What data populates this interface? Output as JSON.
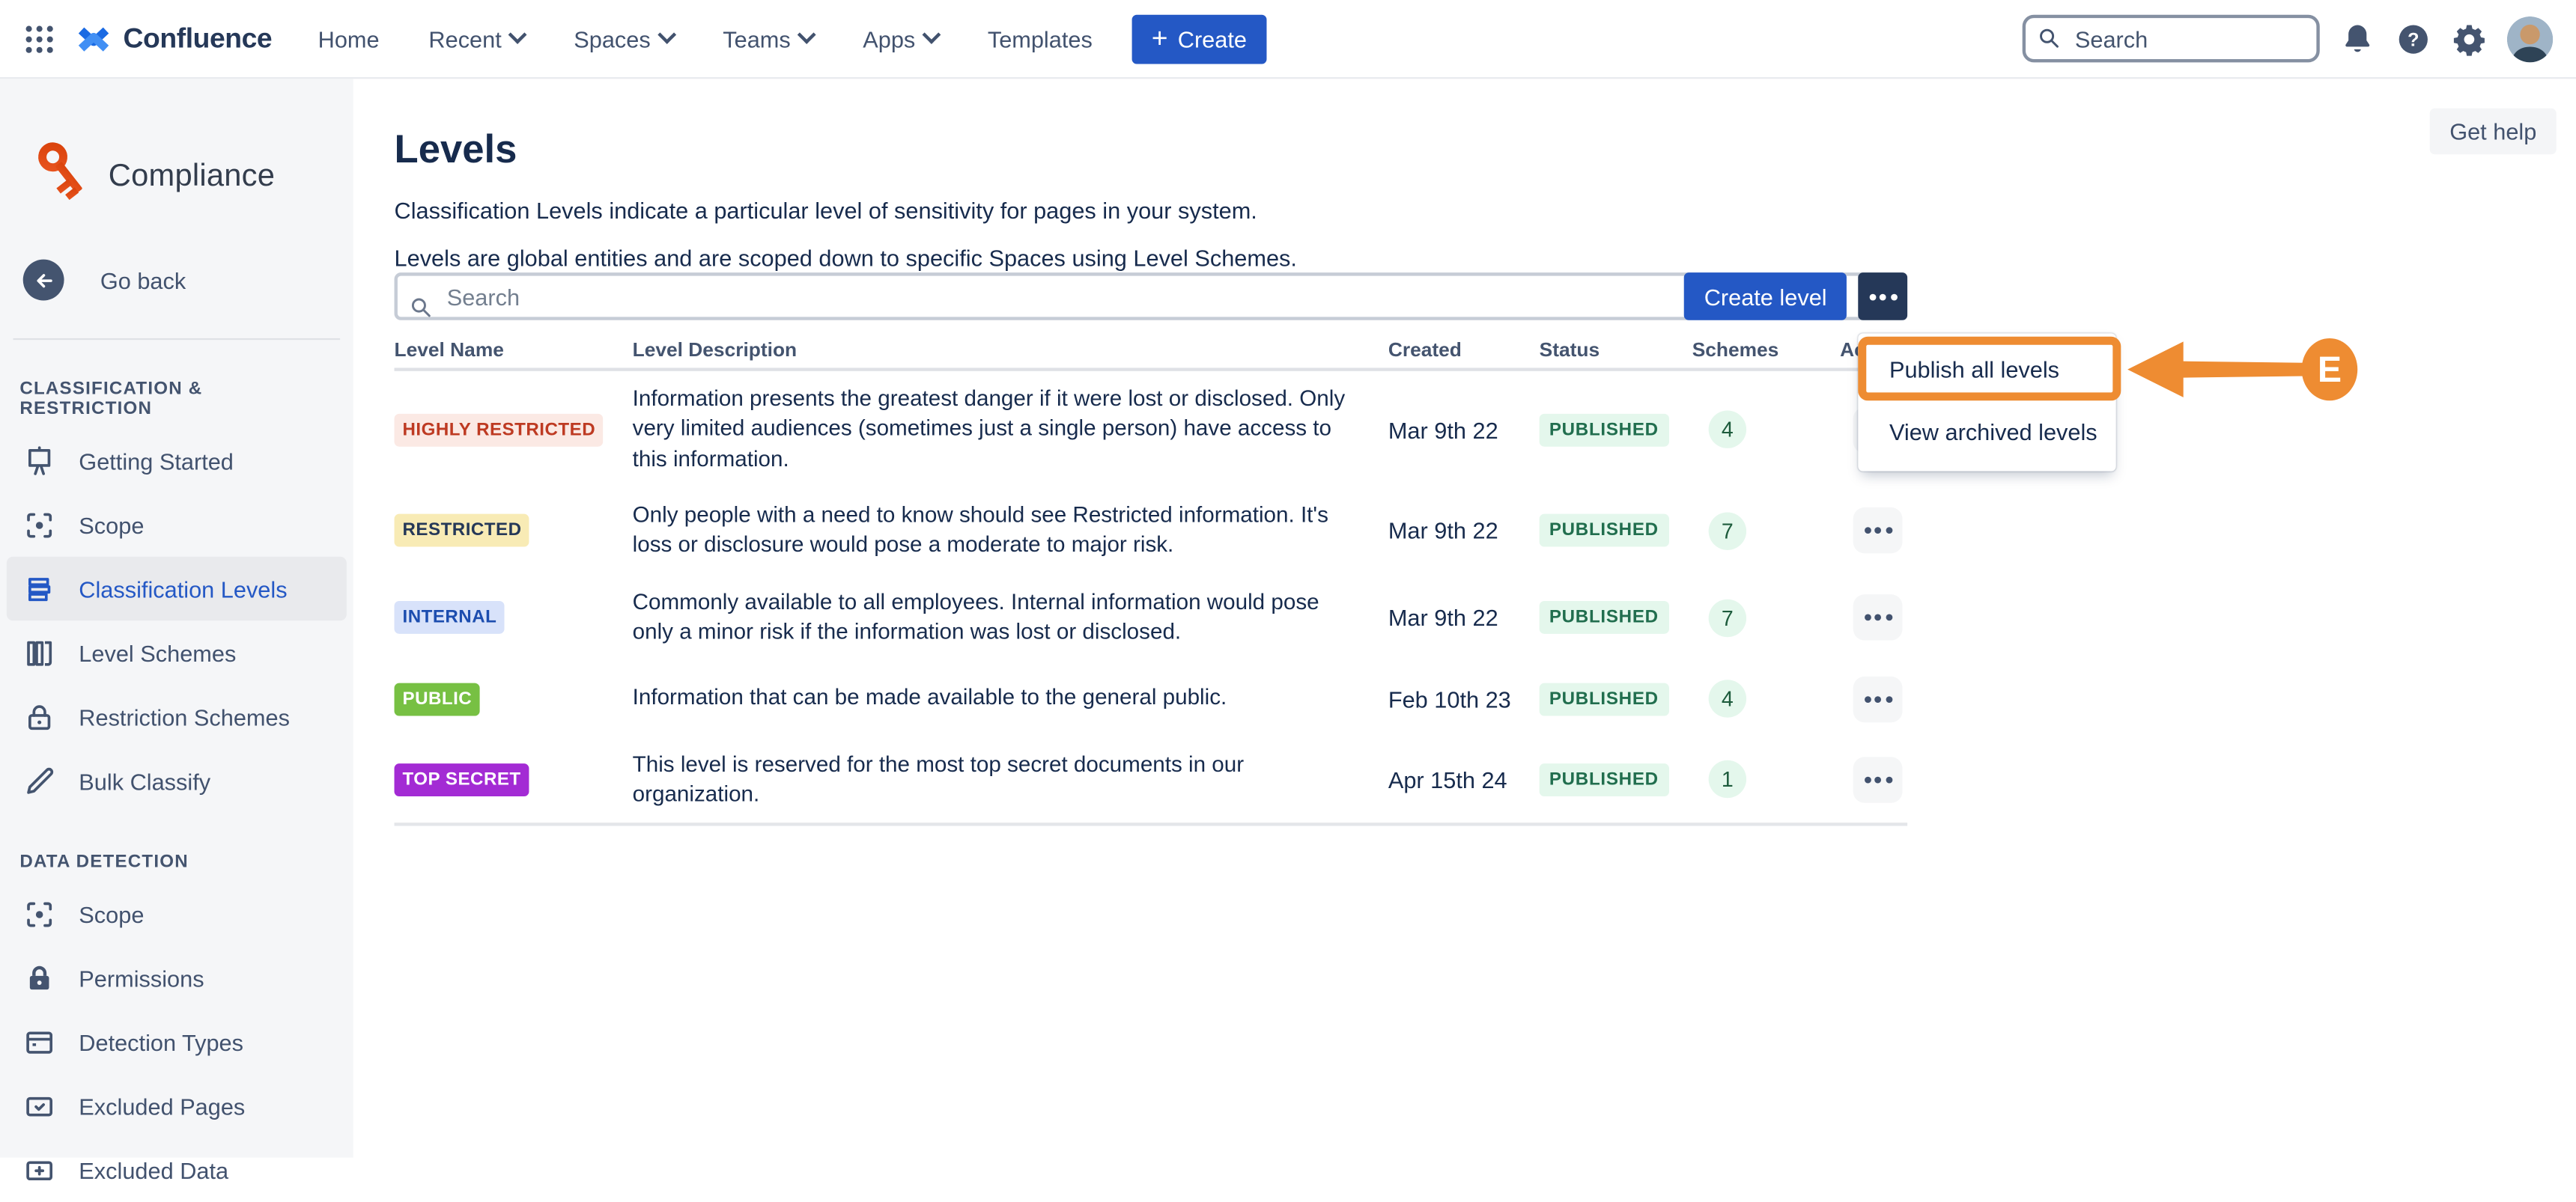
{
  "palette": {
    "accent_blue": "#2458C5",
    "dark_navy": "#253858",
    "annotation_orange": "#EE8C32",
    "status_bg": "#E4F7EC",
    "status_text": "#216E4E"
  },
  "topnav": {
    "brand": "Confluence",
    "menu": [
      {
        "label": "Home",
        "chevron": false
      },
      {
        "label": "Recent",
        "chevron": true
      },
      {
        "label": "Spaces",
        "chevron": true
      },
      {
        "label": "Teams",
        "chevron": true
      },
      {
        "label": "Apps",
        "chevron": true
      },
      {
        "label": "Templates",
        "chevron": false
      }
    ],
    "create_label": "Create",
    "search_placeholder": "Search",
    "icons": [
      "notifications-icon",
      "help-icon",
      "settings-icon",
      "avatar"
    ]
  },
  "sidebar": {
    "app_name": "Compliance",
    "go_back": "Go back",
    "sections": [
      {
        "title": "CLASSIFICATION & RESTRICTION",
        "items": [
          {
            "label": "Getting Started",
            "icon": "easel-icon",
            "selected": false
          },
          {
            "label": "Scope",
            "icon": "scope-icon",
            "selected": false
          },
          {
            "label": "Classification Levels",
            "icon": "levels-icon",
            "selected": true
          },
          {
            "label": "Level Schemes",
            "icon": "columns-icon",
            "selected": false
          },
          {
            "label": "Restriction Schemes",
            "icon": "lock-outline-icon",
            "selected": false
          },
          {
            "label": "Bulk Classify",
            "icon": "pencil-icon",
            "selected": false
          }
        ]
      },
      {
        "title": "DATA DETECTION",
        "items": [
          {
            "label": "Scope",
            "icon": "scope-icon",
            "selected": false
          },
          {
            "label": "Permissions",
            "icon": "lock-filled-icon",
            "selected": false
          },
          {
            "label": "Detection Types",
            "icon": "card-icon",
            "selected": false
          },
          {
            "label": "Excluded Pages",
            "icon": "page-check-icon",
            "selected": false
          },
          {
            "label": "Excluded Data",
            "icon": "data-plus-icon",
            "selected": false
          }
        ]
      }
    ]
  },
  "main": {
    "title": "Levels",
    "get_help": "Get help",
    "description1": "Classification Levels indicate a particular level of sensitivity for pages in your system.",
    "description2": "Levels are global entities and are scoped down to specific Spaces using Level Schemes.",
    "search_placeholder": "Search",
    "create_level": "Create level",
    "table": {
      "headers": [
        "Level Name",
        "Level Description",
        "Created",
        "Status",
        "Schemes",
        "Actions"
      ],
      "rows": [
        {
          "name": "HIGHLY RESTRICTED",
          "name_bg": "#FBE9E4",
          "name_color": "#BE3A22",
          "description": "Information presents the greatest danger if it were lost or disclosed. Only very limited audiences (sometimes just a single person) have access to this information.",
          "created": "Mar 9th 22",
          "status": "PUBLISHED",
          "schemes": "4",
          "min_height": 68
        },
        {
          "name": "RESTRICTED",
          "name_bg": "#F8EBB5",
          "name_color": "#253858",
          "description": "Only people with a need to know should see Restricted information. It's loss or disclosure would pose a moderate to major risk.",
          "created": "Mar 9th 22",
          "status": "PUBLISHED",
          "schemes": "7",
          "min_height": 52
        },
        {
          "name": "INTERNAL",
          "name_bg": "#D8E2FA",
          "name_color": "#1C4DAF",
          "description": "Commonly available to all employees. Internal information would pose only a minor risk if the information was lost or disclosed.",
          "created": "Mar 9th 22",
          "status": "PUBLISHED",
          "schemes": "7",
          "min_height": 51
        },
        {
          "name": "PUBLIC",
          "name_bg": "#77C043",
          "name_color": "#FFFFFF",
          "description": "Information that can be made available to the general public.",
          "created": "Feb 10th 23",
          "status": "PUBLISHED",
          "schemes": "4",
          "min_height": 46
        },
        {
          "name": "TOP SECRET",
          "name_bg": "#A32BD4",
          "name_color": "#FFFFFF",
          "description": "This level is reserved for the most top secret documents in our organization.",
          "created": "Apr 15th 24",
          "status": "PUBLISHED",
          "schemes": "1",
          "min_height": 52
        }
      ]
    },
    "menu_popup": {
      "items": [
        "Publish all levels",
        "View archived levels"
      ]
    }
  },
  "annotation": {
    "label": "E"
  }
}
